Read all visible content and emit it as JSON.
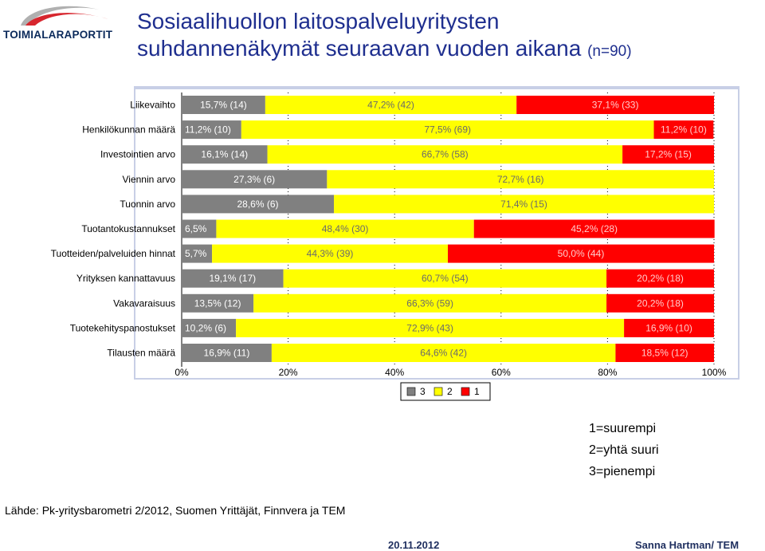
{
  "logo": {
    "text": "TOIMIALARAPORTIT",
    "icon": "swoosh-logo-icon"
  },
  "title": {
    "line1": "Sosiaalihuollon laitospalveluyritysten",
    "line2": "suhdannenäkymät seuraavan vuoden aikana",
    "n": "(n=90)"
  },
  "chart_data": {
    "type": "bar",
    "orientation": "horizontal",
    "stacked": "100%",
    "categories": [
      "Liikevaihto",
      "Henkilökunnan määrä",
      "Investointien arvo",
      "Viennin arvo",
      "Tuonnin arvo",
      "Tuotantokustannukset",
      "Tuotteiden/palveluiden hinnat",
      "Yrityksen kannattavuus",
      "Vakavaraisuus",
      "Tuotekehityspanostukset",
      "Tilausten määrä"
    ],
    "series": [
      {
        "name": "3",
        "color": "#808080",
        "values": [
          15.7,
          11.2,
          16.1,
          27.3,
          28.6,
          6.5,
          5.7,
          19.1,
          13.5,
          10.2,
          16.9
        ],
        "labels": [
          "15,7% (14)",
          "11,2% (10)",
          "16,1% (14)",
          "27,3% (6)",
          "28,6% (6)",
          "6,5%",
          "5,7%",
          "19,1% (17)",
          "13,5% (12)",
          "10,2% (6)",
          "16,9% (11)"
        ]
      },
      {
        "name": "2",
        "color": "#ffff00",
        "values": [
          47.2,
          77.5,
          66.7,
          72.7,
          71.4,
          48.4,
          44.3,
          60.7,
          66.3,
          72.9,
          64.6
        ],
        "labels": [
          "47,2% (42)",
          "77,5% (69)",
          "66,7% (58)",
          "72,7% (16)",
          "71,4% (15)",
          "48,4% (30)",
          "44,3% (39)",
          "60,7% (54)",
          "66,3% (59)",
          "72,9% (43)",
          "64,6% (42)"
        ]
      },
      {
        "name": "1",
        "color": "#ff0000",
        "values": [
          37.1,
          11.2,
          17.2,
          0,
          0,
          45.2,
          50.0,
          20.2,
          20.2,
          16.9,
          18.5
        ],
        "labels": [
          "37,1% (33)",
          "11,2% (10)",
          "17,2% (15)",
          "",
          "",
          "45,2% (28)",
          "50,0% (44)",
          "20,2% (18)",
          "20,2% (18)",
          "16,9% (10)",
          "18,5% (12)"
        ]
      }
    ],
    "xticks": [
      "0%",
      "20%",
      "40%",
      "60%",
      "80%",
      "100%"
    ],
    "xlim": [
      0,
      100
    ],
    "grid": true,
    "legend": "bottom-center"
  },
  "notes": [
    "1=suurempi",
    "2=yhtä suuri",
    "3=pienempi"
  ],
  "source": "Lähde: Pk-yritysbarometri 2/2012, Suomen Yrittäjät, Finnvera ja TEM",
  "footer": {
    "date": "20.11.2012",
    "author": "Sanna Hartman/ TEM"
  }
}
